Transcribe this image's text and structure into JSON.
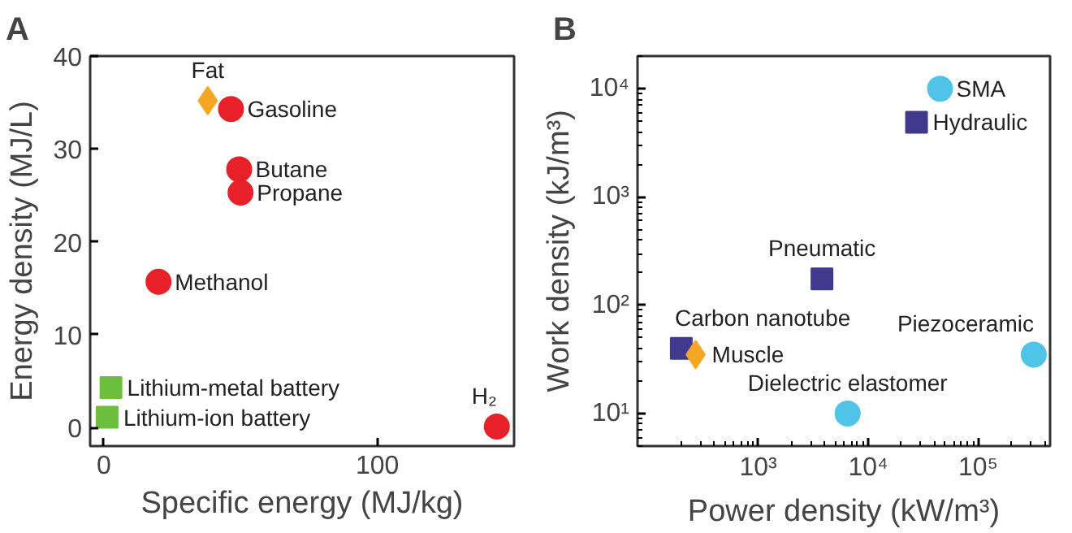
{
  "chart_data": [
    {
      "type": "scatter",
      "title": "A",
      "xlabel": "Specific energy (MJ/kg)",
      "ylabel": "Energy density (MJ/L)",
      "xlim": [
        -5,
        150
      ],
      "ylim": [
        -2,
        40
      ],
      "xticks": [
        0,
        100
      ],
      "yticks": [
        0,
        10,
        20,
        30,
        40
      ],
      "grid": false,
      "series": [
        {
          "color": "#e8202a",
          "marker": "circle",
          "x": [
            46.5,
            49.5,
            50,
            20,
            143.7
          ],
          "values": [
            34.3,
            27.8,
            25.3,
            15.7,
            0.1
          ]
        },
        {
          "color": "#f5a623",
          "marker": "diamond",
          "x": [
            38
          ],
          "values": [
            35.2
          ]
        },
        {
          "color": "#6cbf3c",
          "marker": "square",
          "x": [
            2.6,
            1.2
          ],
          "values": [
            4.3,
            1.1
          ]
        }
      ],
      "annotations": [
        {
          "text": "Fat",
          "x": 38,
          "y": 35.2
        },
        {
          "text": "Gasoline",
          "x": 46.5,
          "y": 34.3
        },
        {
          "text": "Butane",
          "x": 49.5,
          "y": 27.8
        },
        {
          "text": "Propane",
          "x": 50,
          "y": 25.3
        },
        {
          "text": "Methanol",
          "x": 20,
          "y": 15.7
        },
        {
          "text": "Lithium-metal battery",
          "x": 2.6,
          "y": 4.3
        },
        {
          "text": "Lithium-ion battery",
          "x": 1.2,
          "y": 1.1
        },
        {
          "text": "H₂",
          "x": 143.7,
          "y": 0.1
        }
      ]
    },
    {
      "type": "scatter",
      "title": "B",
      "xlabel": "Power density (kW/m³)",
      "ylabel": "Work density (kJ/m³)",
      "log": "xy",
      "xlim": [
        80,
        450000
      ],
      "ylim": [
        5,
        20000
      ],
      "xticks": [
        {
          "value": 1000,
          "label": "10³"
        },
        {
          "value": 10000,
          "label": "10⁴"
        },
        {
          "value": 100000,
          "label": "10⁵"
        }
      ],
      "yticks": [
        {
          "value": 10,
          "label": "10¹"
        },
        {
          "value": 100,
          "label": "10²"
        },
        {
          "value": 1000,
          "label": "10³"
        },
        {
          "value": 10000,
          "label": "10⁴"
        }
      ],
      "grid": false,
      "series": [
        {
          "color": "#4fc3e8",
          "marker": "circle",
          "x": [
            45000,
            6500,
            320000
          ],
          "values": [
            10000,
            10,
            35
          ]
        },
        {
          "color": "#3f3a8c",
          "marker": "square",
          "x": [
            27500,
            3800,
            200
          ],
          "values": [
            4900,
            175,
            40
          ]
        },
        {
          "color": "#f5a623",
          "marker": "diamond",
          "x": [
            270
          ],
          "values": [
            35
          ]
        }
      ],
      "annotations": [
        {
          "text": "SMA",
          "x": 45000,
          "y": 10000
        },
        {
          "text": "Hydraulic",
          "x": 27500,
          "y": 4900
        },
        {
          "text": "Pneumatic",
          "x": 3800,
          "y": 175
        },
        {
          "text": "Carbon nanotube",
          "x": 200,
          "y": 40
        },
        {
          "text": "Muscle",
          "x": 270,
          "y": 35
        },
        {
          "text": "Dielectric elastomer",
          "x": 6500,
          "y": 10
        },
        {
          "text": "Piezoceramic",
          "x": 320000,
          "y": 35
        }
      ]
    }
  ]
}
